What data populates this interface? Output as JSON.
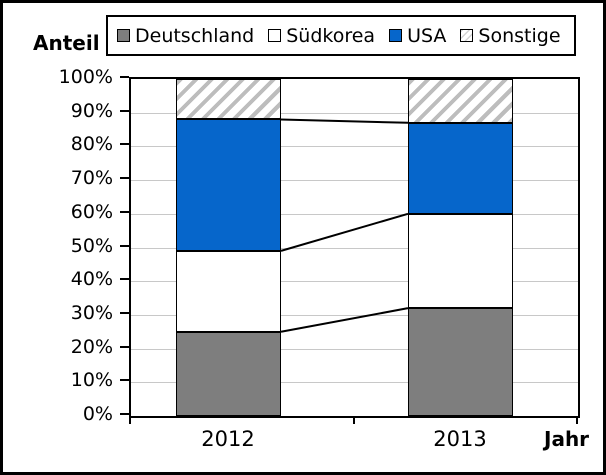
{
  "chart_data": {
    "type": "bar",
    "subtype": "stacked-100-percent-column",
    "title": "",
    "ylabel": "Anteil",
    "xlabel": "Jahr",
    "categories": [
      "2012",
      "2013"
    ],
    "series": [
      {
        "name": "Deutschland",
        "values": [
          25,
          32
        ],
        "color": "#7E7E7E",
        "pattern": "solid"
      },
      {
        "name": "Südkorea",
        "values": [
          24,
          28
        ],
        "color": "#FFFFFF",
        "pattern": "solid"
      },
      {
        "name": "USA",
        "values": [
          39,
          27
        ],
        "color": "#0666CB",
        "pattern": "solid"
      },
      {
        "name": "Sonstige",
        "values": [
          12,
          13
        ],
        "color": "#FFFFFF",
        "pattern": "diagonal-hatch",
        "hatch_color": "#BDBDBD"
      }
    ],
    "ylim": [
      0,
      100
    ],
    "ytick_step": 10,
    "ytick_labels": [
      "0%",
      "10%",
      "20%",
      "30%",
      "40%",
      "50%",
      "60%",
      "70%",
      "80%",
      "90%",
      "100%"
    ],
    "grid": "horizontal",
    "gridline_color": "#C8C8C8",
    "legend_position": "top",
    "connector_lines": true,
    "plot_border_color": "#000000",
    "outer_frame_color": "#000000"
  }
}
